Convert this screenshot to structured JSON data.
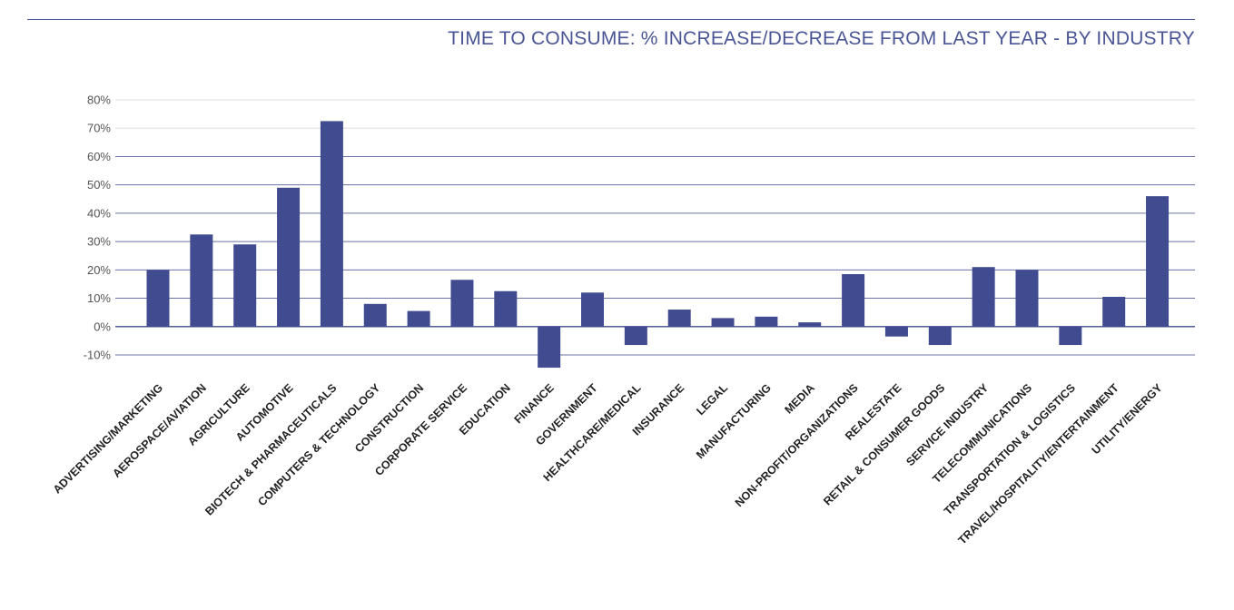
{
  "chart_data": {
    "type": "bar",
    "title": "TIME TO CONSUME: % INCREASE/DECREASE FROM LAST YEAR - BY INDUSTRY",
    "xlabel": "",
    "ylabel": "",
    "ylim": [
      -10,
      80
    ],
    "yticks": [
      80,
      70,
      60,
      50,
      40,
      30,
      20,
      10,
      0,
      -10
    ],
    "ytick_labels": [
      "80%",
      "70%",
      "60%",
      "50%",
      "40%",
      "30%",
      "20%",
      "10%",
      "0%",
      "-10%"
    ],
    "grid": true,
    "legend": "none",
    "bar_color": "#414b90",
    "categories": [
      "ADVERTISING/MARKETING",
      "AEROSPACE/AVIATION",
      "AGRICULTURE",
      "AUTOMOTIVE",
      "BIOTECH & PHARMACEUTICALS",
      "COMPUTERS & TECHNOLOGY",
      "CONSTRUCTION",
      "CORPORATE SERVICE",
      "EDUCATION",
      "FINANCE",
      "GOVERNMENT",
      "HEALTHCARE/MEDICAL",
      "INSURANCE",
      "LEGAL",
      "MANUFACTURING",
      "MEDIA",
      "NON-PROFIT/ORGANIZATIONS",
      "REALESTATE",
      "RETAIL & CONSUMER GOODS",
      "SERVICE INDUSTRY",
      "TELECOMMUNICATIONS",
      "TRANSPORTATION & LOGISTICS",
      "TRAVEL/HOSPITALITY/ENTERTAINMENT",
      "UTILITY/ENERGY"
    ],
    "values": [
      20,
      32.5,
      29,
      49,
      72.5,
      8,
      5.5,
      16.5,
      12.5,
      -14.5,
      12,
      -6.5,
      6,
      3,
      3.5,
      1.5,
      18.5,
      -3.5,
      -6.5,
      21,
      20,
      -6.5,
      10.5,
      46
    ]
  }
}
